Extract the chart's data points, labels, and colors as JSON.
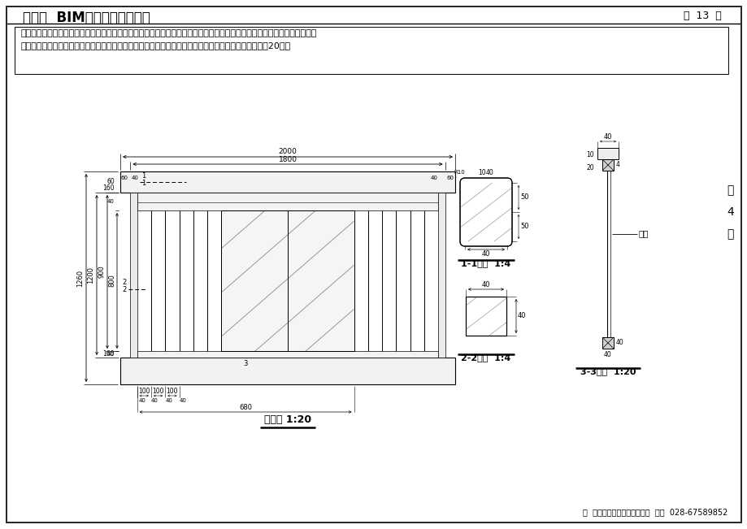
{
  "title": "第四期  BIM技能一级考试试题",
  "page_info": "共  13  页",
  "page_num": "第\n4\n页",
  "question_text_1": "四、图为某栏杆。请按照图示尺寸要求新建并制作栏杆的构建集，截面尺寸除扶手外其余杆件均相同。材质方面，扶手及其他",
  "question_text_2": "杆件材质设为「木材」，挡板材质设为「玻璃」。最终结果以「栏杆」为文件名保存在考生文件夹中。（20分）",
  "footer": "由  成都交大职业技能培训中心  提供  028-67589852",
  "main_view_label": "主视图 1:20",
  "sec11_label": "1-1断面  1:4",
  "sec22_label": "2-2断面  1:4",
  "sec33_label": "3-3断面  1:20",
  "dangban_label": "挡板",
  "bg_color": "#ffffff",
  "border_color": "#000000",
  "line_color": "#000000"
}
